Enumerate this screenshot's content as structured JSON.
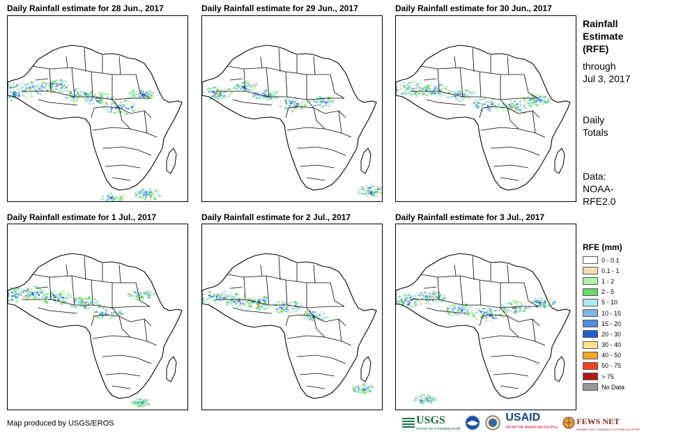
{
  "panels": [
    {
      "title": "Daily Rainfall estimate for 28 Jun., 2017"
    },
    {
      "title": "Daily Rainfall estimate for 29 Jun., 2017"
    },
    {
      "title": "Daily Rainfall estimate for 30 Jun., 2017"
    },
    {
      "title": "Daily Rainfall estimate for 1 Jul., 2017"
    },
    {
      "title": "Daily Rainfall estimate for 2 Jul., 2017"
    },
    {
      "title": "Daily Rainfall estimate for 3 Jul., 2017"
    }
  ],
  "side": {
    "title_line1": "Rainfall",
    "title_line2": "Estimate",
    "title_line3": "(RFE)",
    "through_line1": "through",
    "through_line2": "Jul 3, 2017",
    "totals_line1": "Daily",
    "totals_line2": "Totals",
    "data_line1": "Data:",
    "data_line2": "NOAA-",
    "data_line3": "RFE2.0"
  },
  "legend": {
    "title": "RFE (mm)",
    "items": [
      {
        "label": "0 - 0.1",
        "color": "#ffffff"
      },
      {
        "label": "0.1 - 1",
        "color": "#f2dcb8"
      },
      {
        "label": "1 - 2",
        "color": "#b4eeb0"
      },
      {
        "label": "2 - 5",
        "color": "#6ad86a"
      },
      {
        "label": "5 - 10",
        "color": "#aee8f0"
      },
      {
        "label": "10 - 15",
        "color": "#7fb3ea"
      },
      {
        "label": "15 - 20",
        "color": "#4f8ee0"
      },
      {
        "label": "20 - 30",
        "color": "#1f5fd0"
      },
      {
        "label": "30 - 40",
        "color": "#fbe38a"
      },
      {
        "label": "40 - 50",
        "color": "#f5a623"
      },
      {
        "label": "50 - 75",
        "color": "#f0421c"
      },
      {
        "label": "> 75",
        "color": "#b01818"
      },
      {
        "label": "No Data",
        "color": "#999999"
      }
    ]
  },
  "credit": "Map produced by USGS/EROS",
  "logos": {
    "usgs": "USGS",
    "usgs_tagline": "science for a changing world",
    "noaa": "noaa-logo",
    "doi": "doi-seal",
    "usaid": "USAID",
    "usaid_tagline": "FROM THE AMERICAN PEOPLE",
    "fews": "FEWS NET",
    "fews_tagline": "FAMINE EARLY WARNING SYSTEMS NETWORK"
  }
}
